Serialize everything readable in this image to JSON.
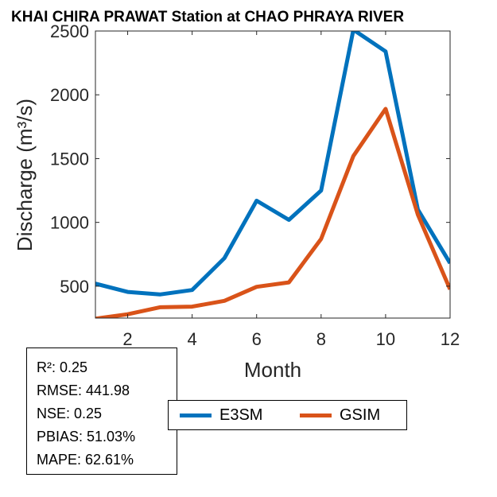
{
  "chart_data": {
    "type": "line",
    "title": "KHAI CHIRA PRAWAT  Station at  CHAO PHRAYA RIVER",
    "xlabel": "Month",
    "ylabel": "Discharge (m³/s)",
    "xlim": [
      1,
      12
    ],
    "ylim": [
      250,
      2500
    ],
    "x_ticks": [
      2,
      4,
      6,
      8,
      10,
      12
    ],
    "y_ticks": [
      500,
      1000,
      1500,
      2000,
      2500
    ],
    "grid": false,
    "legend_position": "bottom-center",
    "x": [
      1,
      2,
      3,
      4,
      5,
      6,
      7,
      8,
      9,
      10,
      11,
      12
    ],
    "series": [
      {
        "name": "E3SM",
        "color": "#0072BD",
        "values": [
          520,
          455,
          435,
          470,
          720,
          1170,
          1020,
          1250,
          2510,
          2340,
          1100,
          680
        ]
      },
      {
        "name": "GSIM",
        "color": "#D95319",
        "values": [
          245,
          280,
          335,
          340,
          385,
          495,
          530,
          870,
          1520,
          1890,
          1060,
          475
        ]
      }
    ]
  },
  "stats": [
    "R²: 0.25",
    "RMSE: 441.98",
    "NSE: 0.25",
    "PBIAS: 51.03%",
    "MAPE: 62.61%"
  ]
}
